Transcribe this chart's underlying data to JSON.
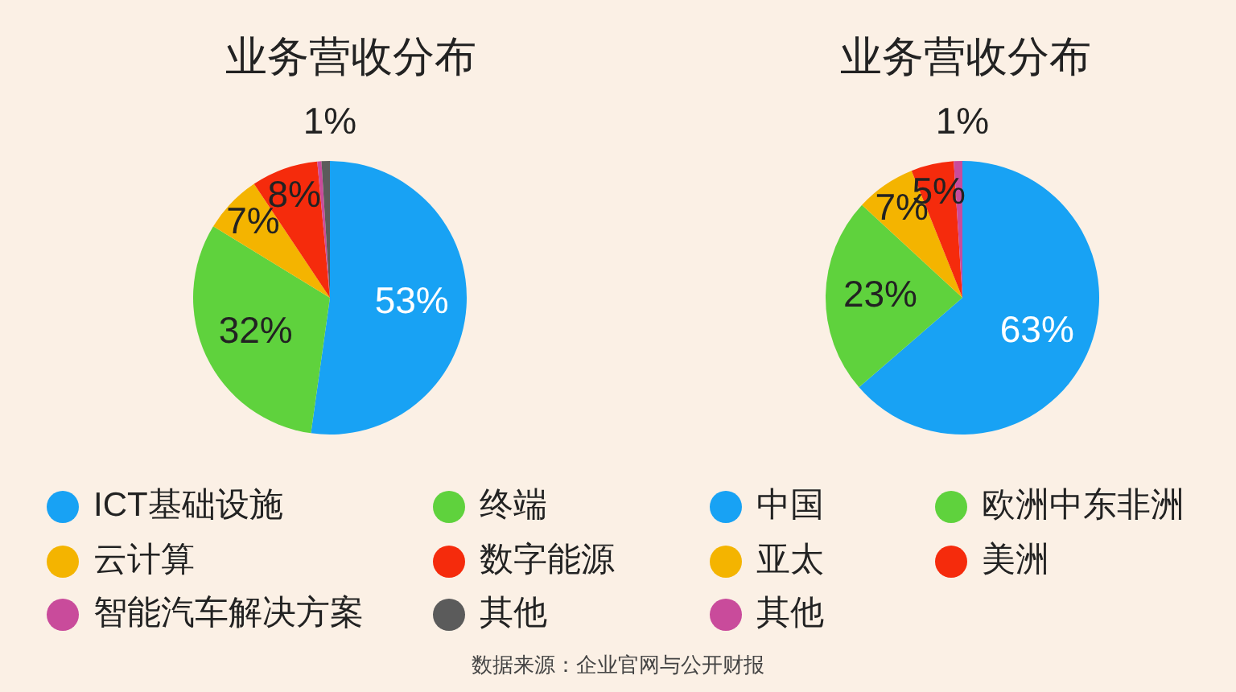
{
  "chart_data": [
    {
      "type": "pie",
      "title": "业务营收分布",
      "categories": [
        "ICT基础设施",
        "终端",
        "云计算",
        "数字能源",
        "智能汽车解决方案",
        "其他"
      ],
      "values": [
        53,
        32,
        7,
        8,
        0.5,
        1
      ],
      "colors": [
        "#18a2f4",
        "#5fd23d",
        "#f4b400",
        "#f52b0c",
        "#c94b9b",
        "#5b5b5b"
      ],
      "value_labels": [
        "53%",
        "32%",
        "7%",
        "8%",
        null,
        "1%"
      ],
      "legend": "bottom",
      "annotations": [
        "数据来源：企业官网与公开财报"
      ]
    },
    {
      "type": "pie",
      "title": "业务营收分布",
      "categories": [
        "中国",
        "欧洲中东非洲",
        "亚太",
        "美洲",
        "其他"
      ],
      "values": [
        63,
        23,
        7,
        5,
        1
      ],
      "colors": [
        "#18a2f4",
        "#5fd23d",
        "#f4b400",
        "#f52b0c",
        "#c94b9b"
      ],
      "value_labels": [
        "63%",
        "23%",
        "7%",
        "5%",
        "1%"
      ],
      "legend": "bottom"
    }
  ]
}
